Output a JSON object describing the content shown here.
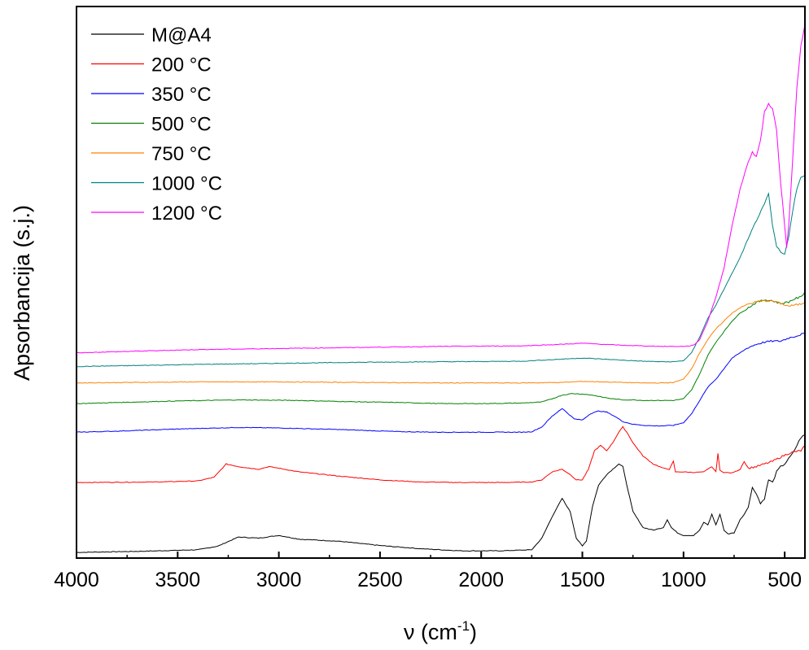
{
  "chart_data": {
    "type": "line",
    "title": "",
    "xlabel": "ν (cm",
    "xlabel_sup": "-1",
    "xlabel_suffix": ")",
    "ylabel": "Apsorbancija (s.j.)",
    "xlim": [
      4000,
      400
    ],
    "x_reversed": true,
    "ylim": [
      0,
      100
    ],
    "y_ticks_shown": false,
    "xticks": [
      4000,
      3500,
      3000,
      2500,
      2000,
      1500,
      1000,
      500
    ],
    "grid": false,
    "legend_position": "top-left",
    "series": [
      {
        "name": "M@A4",
        "color": "#000000",
        "points": [
          [
            4000,
            0.3
          ],
          [
            3700,
            0.5
          ],
          [
            3400,
            0.8
          ],
          [
            3300,
            1.5
          ],
          [
            3200,
            3.2
          ],
          [
            3100,
            3.0
          ],
          [
            3000,
            3.5
          ],
          [
            2900,
            2.8
          ],
          [
            2700,
            2.4
          ],
          [
            2500,
            1.6
          ],
          [
            2300,
            1.0
          ],
          [
            2100,
            0.6
          ],
          [
            1900,
            0.6
          ],
          [
            1750,
            0.8
          ],
          [
            1700,
            3.0
          ],
          [
            1650,
            7.0
          ],
          [
            1600,
            10.5
          ],
          [
            1560,
            8.0
          ],
          [
            1530,
            3.0
          ],
          [
            1500,
            1.5
          ],
          [
            1480,
            2.5
          ],
          [
            1450,
            9.0
          ],
          [
            1420,
            13.0
          ],
          [
            1380,
            15.0
          ],
          [
            1350,
            16.0
          ],
          [
            1320,
            17.0
          ],
          [
            1300,
            16.5
          ],
          [
            1280,
            13.0
          ],
          [
            1250,
            8.0
          ],
          [
            1200,
            5.0
          ],
          [
            1150,
            4.5
          ],
          [
            1100,
            5.0
          ],
          [
            1080,
            6.5
          ],
          [
            1060,
            5.0
          ],
          [
            1030,
            4.0
          ],
          [
            1000,
            3.5
          ],
          [
            950,
            3.5
          ],
          [
            920,
            4.5
          ],
          [
            900,
            6.0
          ],
          [
            880,
            5.5
          ],
          [
            860,
            7.5
          ],
          [
            840,
            5.5
          ],
          [
            820,
            7.5
          ],
          [
            800,
            4.5
          ],
          [
            780,
            3.8
          ],
          [
            750,
            4.0
          ],
          [
            720,
            6.5
          ],
          [
            700,
            7.5
          ],
          [
            680,
            9.0
          ],
          [
            660,
            12.5
          ],
          [
            640,
            11.5
          ],
          [
            620,
            9.5
          ],
          [
            600,
            10.5
          ],
          [
            580,
            14.0
          ],
          [
            560,
            13.5
          ],
          [
            540,
            15.5
          ],
          [
            520,
            16.5
          ],
          [
            500,
            17.0
          ],
          [
            480,
            18.0
          ],
          [
            460,
            19.0
          ],
          [
            440,
            20.5
          ],
          [
            420,
            22.0
          ],
          [
            400,
            22.5
          ]
        ]
      },
      {
        "name": "200 °C",
        "color": "#ff0000",
        "points": [
          [
            4000,
            13.5
          ],
          [
            3600,
            13.6
          ],
          [
            3400,
            13.8
          ],
          [
            3320,
            14.5
          ],
          [
            3260,
            17.0
          ],
          [
            3200,
            16.5
          ],
          [
            3100,
            16.0
          ],
          [
            3050,
            16.5
          ],
          [
            3000,
            16.2
          ],
          [
            2900,
            15.5
          ],
          [
            2700,
            14.7
          ],
          [
            2500,
            14.0
          ],
          [
            2300,
            13.6
          ],
          [
            2100,
            13.5
          ],
          [
            1900,
            13.5
          ],
          [
            1750,
            13.6
          ],
          [
            1700,
            14.0
          ],
          [
            1650,
            15.5
          ],
          [
            1600,
            16.0
          ],
          [
            1560,
            15.0
          ],
          [
            1530,
            14.0
          ],
          [
            1500,
            14.0
          ],
          [
            1470,
            16.0
          ],
          [
            1440,
            19.5
          ],
          [
            1410,
            20.5
          ],
          [
            1380,
            19.5
          ],
          [
            1350,
            21.0
          ],
          [
            1320,
            23.0
          ],
          [
            1300,
            24.0
          ],
          [
            1280,
            23.0
          ],
          [
            1250,
            21.0
          ],
          [
            1200,
            18.5
          ],
          [
            1150,
            17.0
          ],
          [
            1100,
            16.2
          ],
          [
            1070,
            16.0
          ],
          [
            1050,
            17.5
          ],
          [
            1040,
            15.5
          ],
          [
            1000,
            15.5
          ],
          [
            950,
            15.4
          ],
          [
            900,
            15.5
          ],
          [
            860,
            16.5
          ],
          [
            840,
            15.5
          ],
          [
            830,
            19.0
          ],
          [
            820,
            15.8
          ],
          [
            800,
            15.4
          ],
          [
            760,
            15.3
          ],
          [
            720,
            16.0
          ],
          [
            700,
            17.5
          ],
          [
            680,
            16.2
          ],
          [
            640,
            16.5
          ],
          [
            600,
            17.0
          ],
          [
            560,
            17.5
          ],
          [
            520,
            18.3
          ],
          [
            480,
            19.0
          ],
          [
            450,
            19.3
          ],
          [
            420,
            19.5
          ],
          [
            400,
            20.5
          ]
        ]
      },
      {
        "name": "350 °C",
        "color": "#0000ff",
        "points": [
          [
            4000,
            23.0
          ],
          [
            3800,
            23.2
          ],
          [
            3500,
            23.6
          ],
          [
            3200,
            23.9
          ],
          [
            3000,
            23.8
          ],
          [
            2700,
            23.5
          ],
          [
            2400,
            23.1
          ],
          [
            2200,
            23.0
          ],
          [
            2000,
            23.0
          ],
          [
            1800,
            23.0
          ],
          [
            1750,
            23.1
          ],
          [
            1700,
            24.0
          ],
          [
            1650,
            26.0
          ],
          [
            1600,
            27.5
          ],
          [
            1570,
            26.5
          ],
          [
            1540,
            25.5
          ],
          [
            1500,
            25.3
          ],
          [
            1460,
            26.5
          ],
          [
            1420,
            27.0
          ],
          [
            1380,
            26.8
          ],
          [
            1340,
            26.0
          ],
          [
            1300,
            25.0
          ],
          [
            1250,
            24.5
          ],
          [
            1200,
            24.3
          ],
          [
            1150,
            24.2
          ],
          [
            1100,
            24.2
          ],
          [
            1050,
            24.3
          ],
          [
            1000,
            24.8
          ],
          [
            960,
            26.5
          ],
          [
            920,
            29.0
          ],
          [
            880,
            31.5
          ],
          [
            840,
            33.0
          ],
          [
            800,
            35.0
          ],
          [
            760,
            37.0
          ],
          [
            720,
            38.0
          ],
          [
            680,
            39.0
          ],
          [
            640,
            39.6
          ],
          [
            600,
            40.0
          ],
          [
            560,
            40.2
          ],
          [
            520,
            40.2
          ],
          [
            480,
            40.8
          ],
          [
            440,
            41.2
          ],
          [
            400,
            41.7
          ]
        ]
      },
      {
        "name": "500 °C",
        "color": "#008000",
        "points": [
          [
            4000,
            28.4
          ],
          [
            3800,
            28.6
          ],
          [
            3500,
            28.9
          ],
          [
            3200,
            29.1
          ],
          [
            2900,
            29.0
          ],
          [
            2700,
            28.8
          ],
          [
            2400,
            28.6
          ],
          [
            2200,
            28.4
          ],
          [
            2000,
            28.4
          ],
          [
            1800,
            28.5
          ],
          [
            1700,
            28.7
          ],
          [
            1650,
            29.3
          ],
          [
            1600,
            30.0
          ],
          [
            1550,
            30.3
          ],
          [
            1500,
            30.2
          ],
          [
            1450,
            30.0
          ],
          [
            1400,
            29.6
          ],
          [
            1350,
            29.3
          ],
          [
            1300,
            29.1
          ],
          [
            1250,
            29.1
          ],
          [
            1200,
            29.0
          ],
          [
            1150,
            29.0
          ],
          [
            1100,
            29.0
          ],
          [
            1050,
            29.0
          ],
          [
            1000,
            29.3
          ],
          [
            960,
            31.0
          ],
          [
            920,
            34.0
          ],
          [
            880,
            37.5
          ],
          [
            840,
            40.0
          ],
          [
            800,
            42.0
          ],
          [
            760,
            44.0
          ],
          [
            720,
            45.5
          ],
          [
            680,
            46.5
          ],
          [
            640,
            47.5
          ],
          [
            600,
            48.0
          ],
          [
            560,
            47.8
          ],
          [
            520,
            47.3
          ],
          [
            480,
            47.6
          ],
          [
            450,
            48.2
          ],
          [
            420,
            48.5
          ],
          [
            400,
            49.5
          ]
        ]
      },
      {
        "name": "750 °C",
        "color": "#ff8000",
        "points": [
          [
            4000,
            32.3
          ],
          [
            3700,
            32.4
          ],
          [
            3400,
            32.5
          ],
          [
            3000,
            32.5
          ],
          [
            2600,
            32.4
          ],
          [
            2200,
            32.3
          ],
          [
            1800,
            32.3
          ],
          [
            1600,
            32.4
          ],
          [
            1500,
            32.6
          ],
          [
            1400,
            32.5
          ],
          [
            1300,
            32.4
          ],
          [
            1200,
            32.3
          ],
          [
            1100,
            32.3
          ],
          [
            1050,
            32.4
          ],
          [
            1000,
            33.0
          ],
          [
            960,
            35.0
          ],
          [
            920,
            38.0
          ],
          [
            880,
            40.5
          ],
          [
            840,
            42.5
          ],
          [
            800,
            44.0
          ],
          [
            760,
            45.5
          ],
          [
            720,
            46.5
          ],
          [
            680,
            47.2
          ],
          [
            640,
            47.6
          ],
          [
            600,
            47.8
          ],
          [
            560,
            47.8
          ],
          [
            520,
            47.3
          ],
          [
            480,
            46.8
          ],
          [
            450,
            47.0
          ],
          [
            420,
            47.2
          ],
          [
            400,
            47.5
          ]
        ]
      },
      {
        "name": "1000 °C",
        "color": "#008080",
        "points": [
          [
            4000,
            35.4
          ],
          [
            3700,
            35.6
          ],
          [
            3400,
            35.8
          ],
          [
            3000,
            36.0
          ],
          [
            2600,
            36.2
          ],
          [
            2200,
            36.3
          ],
          [
            1800,
            36.4
          ],
          [
            1600,
            36.8
          ],
          [
            1500,
            37.0
          ],
          [
            1400,
            36.8
          ],
          [
            1300,
            36.6
          ],
          [
            1200,
            36.4
          ],
          [
            1100,
            36.3
          ],
          [
            1050,
            36.3
          ],
          [
            1000,
            36.5
          ],
          [
            960,
            38.0
          ],
          [
            920,
            41.0
          ],
          [
            880,
            44.5
          ],
          [
            840,
            47.0
          ],
          [
            800,
            50.0
          ],
          [
            760,
            53.0
          ],
          [
            720,
            56.0
          ],
          [
            680,
            59.5
          ],
          [
            640,
            63.0
          ],
          [
            600,
            66.0
          ],
          [
            580,
            68.0
          ],
          [
            560,
            62.0
          ],
          [
            540,
            58.0
          ],
          [
            520,
            57.0
          ],
          [
            500,
            56.5
          ],
          [
            480,
            60.0
          ],
          [
            460,
            65.0
          ],
          [
            440,
            69.0
          ],
          [
            420,
            71.0
          ],
          [
            400,
            71.5
          ]
        ]
      },
      {
        "name": "1200 °C",
        "color": "#ff00ff",
        "points": [
          [
            4000,
            38.0
          ],
          [
            3700,
            38.3
          ],
          [
            3400,
            38.6
          ],
          [
            3000,
            38.8
          ],
          [
            2600,
            39.0
          ],
          [
            2200,
            39.2
          ],
          [
            1800,
            39.3
          ],
          [
            1600,
            39.6
          ],
          [
            1500,
            39.8
          ],
          [
            1400,
            39.6
          ],
          [
            1300,
            39.4
          ],
          [
            1200,
            39.3
          ],
          [
            1100,
            39.2
          ],
          [
            1000,
            39.2
          ],
          [
            950,
            39.4
          ],
          [
            920,
            40.5
          ],
          [
            880,
            44.0
          ],
          [
            840,
            48.5
          ],
          [
            800,
            54.0
          ],
          [
            760,
            62.0
          ],
          [
            720,
            69.0
          ],
          [
            680,
            74.0
          ],
          [
            660,
            76.0
          ],
          [
            640,
            75.0
          ],
          [
            620,
            78.0
          ],
          [
            600,
            83.5
          ],
          [
            580,
            85.0
          ],
          [
            560,
            84.0
          ],
          [
            540,
            80.0
          ],
          [
            520,
            70.0
          ],
          [
            500,
            62.0
          ],
          [
            490,
            58.0
          ],
          [
            480,
            62.0
          ],
          [
            460,
            75.0
          ],
          [
            440,
            88.0
          ],
          [
            420,
            96.0
          ],
          [
            400,
            100.0
          ]
        ]
      }
    ]
  }
}
